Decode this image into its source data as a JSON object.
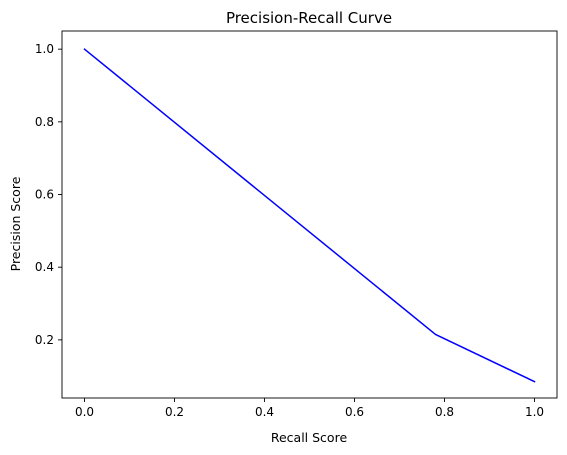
{
  "chart_data": {
    "type": "line",
    "title": "Precision-Recall Curve",
    "xlabel": "Recall Score",
    "ylabel": "Precision Score",
    "xlim": [
      -0.05,
      1.05
    ],
    "ylim": [
      0.04,
      1.05
    ],
    "xticks": [
      0.0,
      0.2,
      0.4,
      0.6,
      0.8,
      1.0
    ],
    "xtick_labels": [
      "0.0",
      "0.2",
      "0.4",
      "0.6",
      "0.8",
      "1.0"
    ],
    "yticks": [
      0.2,
      0.4,
      0.6,
      0.8,
      1.0
    ],
    "ytick_labels": [
      "0.2",
      "0.4",
      "0.6",
      "0.8",
      "1.0"
    ],
    "grid": false,
    "legend": "none",
    "series": [
      {
        "color": "#0000ff",
        "x": [
          0.0,
          0.78,
          1.0
        ],
        "y": [
          1.0,
          0.215,
          0.085
        ]
      }
    ]
  }
}
